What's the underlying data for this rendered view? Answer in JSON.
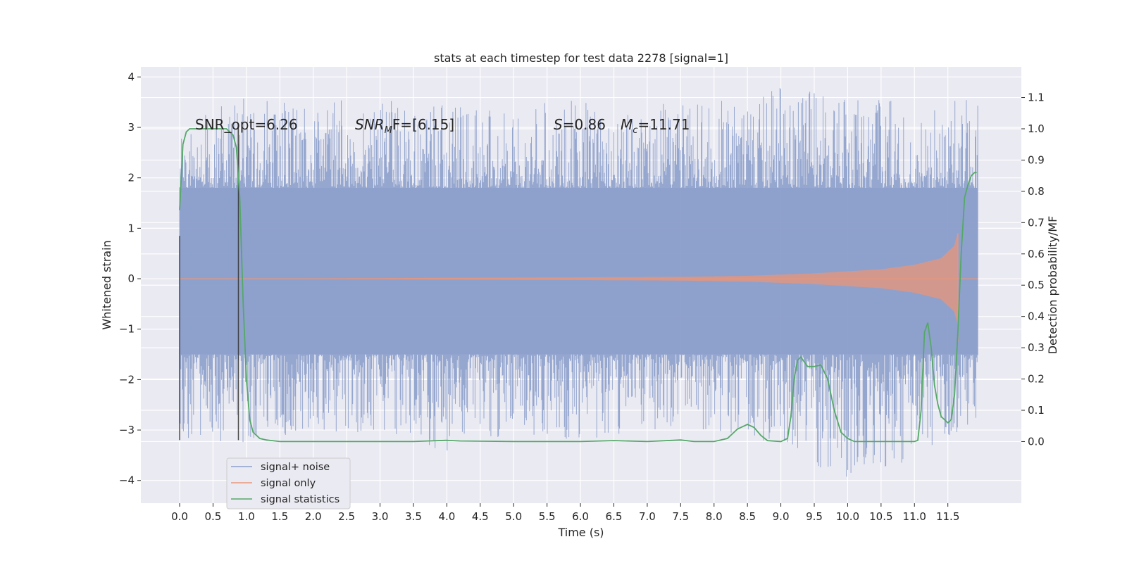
{
  "chart_data": {
    "type": "line",
    "title": "stats at each timestep for test data 2278 [signal=1]",
    "xlabel": "Time (s)",
    "ylabel": "Whitened strain",
    "y2label": "Detection probability/MF",
    "xlim": [
      -0.58,
      12.6
    ],
    "ylim": [
      -4.45,
      4.2
    ],
    "y2lim": [
      -0.197,
      1.198
    ],
    "x_ticks": [
      "0.0",
      "0.5",
      "1.0",
      "1.5",
      "2.0",
      "2.5",
      "3.0",
      "3.5",
      "4.0",
      "4.5",
      "5.0",
      "5.5",
      "6.0",
      "6.5",
      "7.0",
      "7.5",
      "8.0",
      "8.5",
      "9.0",
      "9.5",
      "10.0",
      "10.5",
      "11.0",
      "11.5"
    ],
    "y_ticks": [
      "4",
      "3",
      "2",
      "1",
      "0",
      "−1",
      "−2",
      "−3",
      "−4"
    ],
    "y2_ticks": [
      "1.1",
      "1.0",
      "0.9",
      "0.8",
      "0.7",
      "0.6",
      "0.5",
      "0.4",
      "0.3",
      "0.2",
      "0.1",
      "0.0"
    ],
    "grid": true,
    "legend_position": "lower-left",
    "annotations": {
      "snr_opt": "SNR_opt=6.26",
      "snr_mf_main": "SNR",
      "snr_mf_sub": "M",
      "snr_mf_rest": "F=[6.15]",
      "s_main": "S",
      "s_rest": "=0.86",
      "mc_main": "M",
      "mc_sub": "c",
      "mc_rest": "=11.71"
    },
    "series": [
      {
        "name": "signal+ noise",
        "color": "#8da0cb",
        "envelope_x": [
          0.0,
          1.0,
          2.0,
          3.0,
          4.0,
          5.0,
          6.0,
          7.0,
          8.0,
          9.0,
          10.0,
          11.0,
          12.0
        ],
        "envelope_max": [
          3.0,
          3.7,
          3.5,
          3.6,
          3.5,
          3.4,
          3.6,
          3.5,
          3.5,
          3.8,
          3.6,
          3.5,
          3.6
        ],
        "envelope_min": [
          -3.2,
          -3.3,
          -3.0,
          -3.1,
          -3.5,
          -3.1,
          -3.2,
          -3.0,
          -3.0,
          -3.4,
          -4.0,
          -3.6,
          -2.8
        ],
        "dense_band": [
          -1.5,
          1.8
        ]
      },
      {
        "name": "signal only",
        "color": "#e9967a",
        "x": [
          0.0,
          2.0,
          4.0,
          6.0,
          7.5,
          8.5,
          9.5,
          10.5,
          11.0,
          11.4,
          11.6,
          11.65
        ],
        "amplitude": [
          0.0,
          0.0,
          0.01,
          0.02,
          0.03,
          0.05,
          0.1,
          0.18,
          0.27,
          0.4,
          0.65,
          0.9
        ]
      },
      {
        "name": "signal statistics",
        "color": "#55a868",
        "x": [
          0.0,
          0.05,
          0.1,
          0.15,
          0.2,
          0.3,
          0.4,
          0.5,
          0.6,
          0.7,
          0.8,
          0.85,
          0.9,
          0.95,
          1.0,
          1.05,
          1.1,
          1.15,
          1.2,
          1.3,
          1.5,
          1.8,
          2.5,
          3.5,
          4.0,
          4.2,
          5.0,
          6.0,
          6.5,
          7.0,
          7.5,
          7.7,
          8.0,
          8.2,
          8.35,
          8.5,
          8.6,
          8.7,
          8.8,
          9.0,
          9.1,
          9.15,
          9.2,
          9.25,
          9.3,
          9.4,
          9.5,
          9.6,
          9.7,
          9.8,
          9.9,
          10.0,
          10.05,
          10.1,
          10.2,
          10.5,
          11.0,
          11.05,
          11.1,
          11.15,
          11.2,
          11.25,
          11.3,
          11.35,
          11.4,
          11.45,
          11.5,
          11.55,
          11.6,
          11.65,
          11.7,
          11.75,
          11.8,
          11.85,
          11.9,
          11.93
        ],
        "values": [
          0.74,
          0.95,
          0.99,
          1.0,
          1.0,
          1.0,
          1.0,
          1.0,
          1.0,
          1.0,
          0.98,
          0.94,
          0.78,
          0.45,
          0.2,
          0.07,
          0.03,
          0.02,
          0.01,
          0.005,
          0.0,
          0.0,
          0.0,
          0.0,
          0.004,
          0.002,
          0.0,
          0.0,
          0.003,
          0.0,
          0.005,
          0.0,
          0.0,
          0.01,
          0.04,
          0.055,
          0.045,
          0.02,
          0.003,
          0.0,
          0.01,
          0.08,
          0.2,
          0.26,
          0.27,
          0.24,
          0.24,
          0.245,
          0.2,
          0.1,
          0.03,
          0.01,
          0.005,
          0.0,
          0.0,
          0.0,
          0.0,
          0.004,
          0.1,
          0.35,
          0.38,
          0.3,
          0.18,
          0.12,
          0.08,
          0.07,
          0.06,
          0.07,
          0.15,
          0.35,
          0.6,
          0.78,
          0.82,
          0.85,
          0.86,
          0.86
        ]
      }
    ],
    "vertical_markers": [
      {
        "x": 0.0,
        "ymin": -3.2,
        "ymax": 0.85,
        "color": "#333333"
      },
      {
        "x": 0.88,
        "ymin": -3.2,
        "ymax": 3.0,
        "color": "#333333"
      }
    ]
  }
}
